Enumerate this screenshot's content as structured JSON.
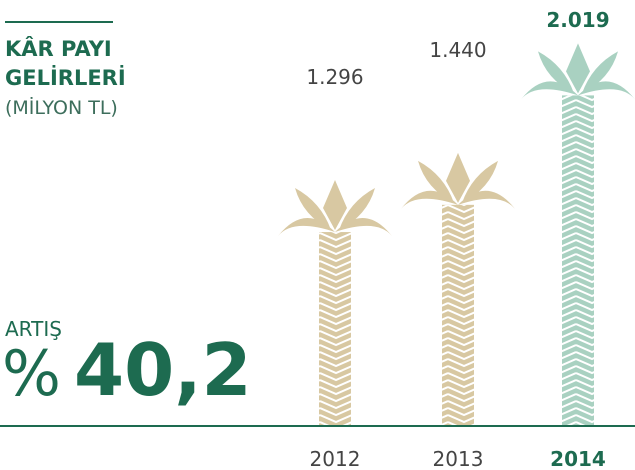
{
  "chart_data": {
    "type": "palm",
    "title": [
      "KÂR PAYI",
      "GELİRLERİ"
    ],
    "subtitle": "(MİLYON TL)",
    "annotation": {
      "label": "ARTIŞ",
      "symbol": "%",
      "value": "40,2"
    },
    "categories": [
      "2012",
      "2013",
      "2014"
    ],
    "values": [
      1296,
      1440,
      2019
    ],
    "value_labels": [
      "1.296",
      "1.440",
      "2.019"
    ],
    "colors": [
      "#d8c8a2",
      "#d8c8a2",
      "#a9d1c1"
    ],
    "highlight": "2014"
  }
}
